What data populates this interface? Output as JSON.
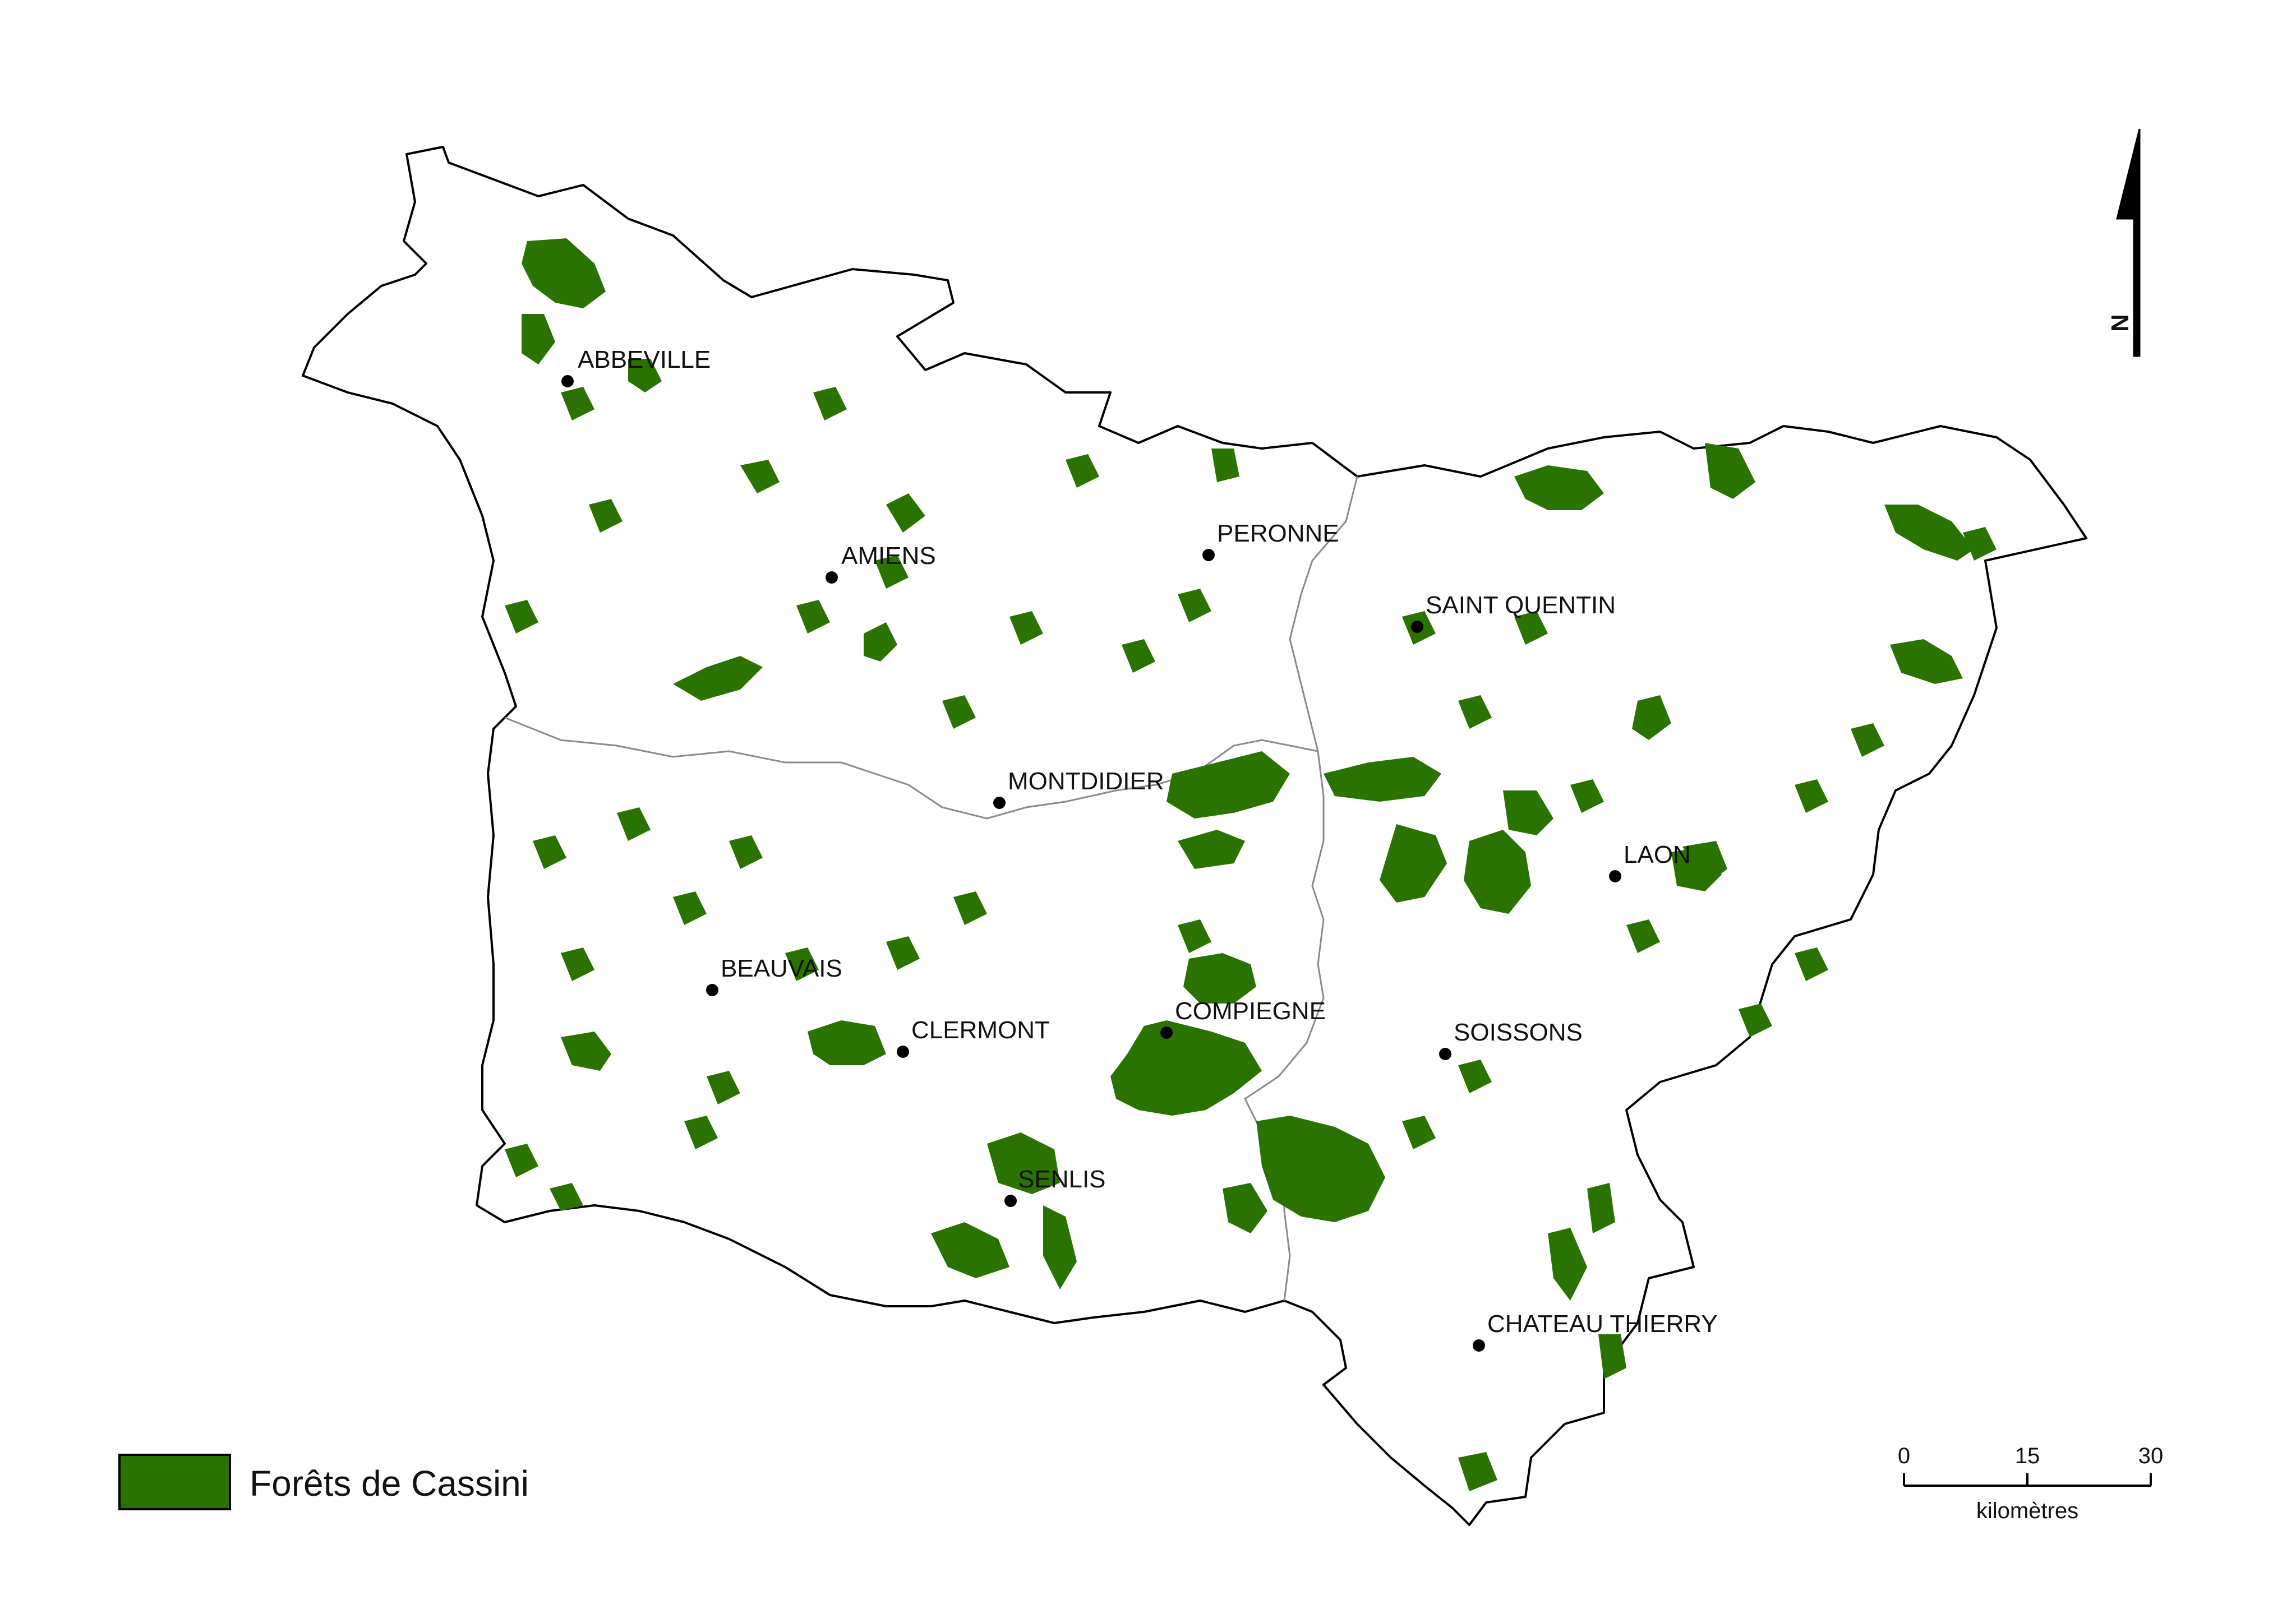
{
  "colors": {
    "forest": "#2a7300",
    "outline": "#000000",
    "inner_border": "#8a8a8a",
    "background": "#ffffff"
  },
  "cities": [
    {
      "id": "abbeville",
      "name": "ABBEVILLE"
    },
    {
      "id": "amiens",
      "name": "AMIENS"
    },
    {
      "id": "peronne",
      "name": "PERONNE"
    },
    {
      "id": "saint-quentin",
      "name": "SAINT QUENTIN"
    },
    {
      "id": "montdidier",
      "name": "MONTDIDIER"
    },
    {
      "id": "laon",
      "name": "LAON"
    },
    {
      "id": "beauvais",
      "name": "BEAUVAIS"
    },
    {
      "id": "clermont",
      "name": "CLERMONT"
    },
    {
      "id": "compiegne",
      "name": "COMPIEGNE"
    },
    {
      "id": "soissons",
      "name": "SOISSONS"
    },
    {
      "id": "senlis",
      "name": "SENLIS"
    },
    {
      "id": "chateau-thierry",
      "name": "CHATEAU THIERRY"
    }
  ],
  "legend": {
    "label": "Forêts de Cassini"
  },
  "scale_bar": {
    "ticks": [
      "0",
      "15",
      "30"
    ],
    "unit": "kilomètres"
  },
  "north_arrow": {
    "label": "N",
    "icon": "north-arrow-icon"
  }
}
